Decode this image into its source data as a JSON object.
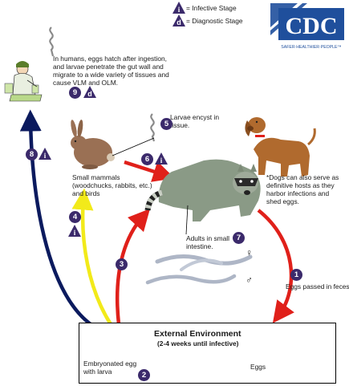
{
  "legend": {
    "infective_symbol": "i",
    "infective_label": "= Infective Stage",
    "diagnostic_symbol": "d",
    "diagnostic_label": "= Diagnostic Stage"
  },
  "logo": {
    "name": "CDC",
    "tagline": "SAFER·HEALTHIER·PEOPLE™"
  },
  "humans_text": "In humans, eggs hatch after ingestion, and larvae penetrate the gut wall and migrate to a wide variety of tissues and cause VLM and OLM.",
  "larvae_encyst": "Larvae encyst in tissue.",
  "small_mammals": "Small mammals (woodchucks, rabbits, etc.) and birds",
  "dogs_note": "*Dogs can also serve as definitive hosts as they harbor infections and shed eggs.",
  "adults_text": "Adults in small intestine.",
  "eggs_passed": "Eggs passed in feces",
  "env": {
    "title": "External Environment",
    "subtitle": "(2-4 weeks until infective)"
  },
  "embryonated": "Embryonated egg with larva",
  "eggs_label": "Eggs",
  "steps": {
    "s1": "1",
    "s2": "2",
    "s3": "3",
    "s4": "4",
    "s5": "5",
    "s6": "6",
    "s7": "7",
    "s8": "8",
    "s9": "9"
  },
  "stage_marks": {
    "i": "i",
    "d": "d"
  },
  "sex": {
    "female": "♀",
    "male": "♂"
  },
  "colors": {
    "badge": "#3b2a6b",
    "arrow_red": "#e0201a",
    "arrow_yellow": "#f2ea1a",
    "arrow_navy": "#0b1a5e",
    "cdc_blue": "#1f4f9c"
  }
}
